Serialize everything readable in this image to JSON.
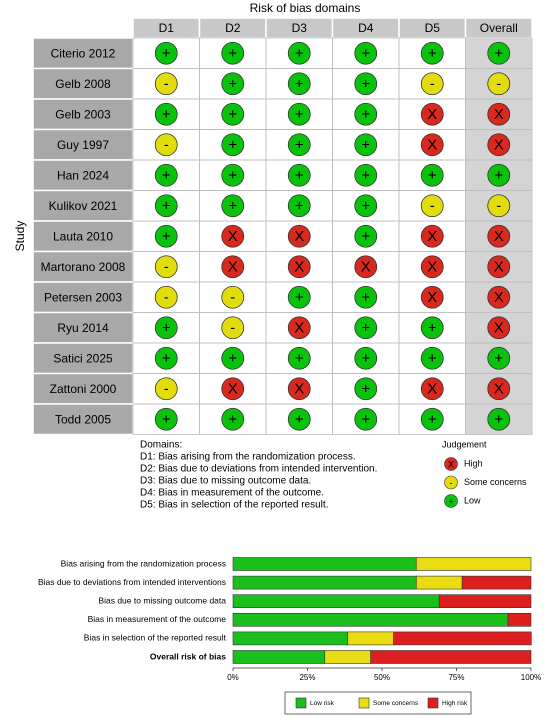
{
  "traffic_light": {
    "title": "Risk of bias domains",
    "y_label": "Study",
    "columns": [
      "D1",
      "D2",
      "D3",
      "D4",
      "D5",
      "Overall"
    ],
    "rows": [
      {
        "study": "Citerio 2012",
        "judgements": [
          "+",
          "+",
          "+",
          "+",
          "+",
          "+"
        ]
      },
      {
        "study": "Gelb 2008",
        "judgements": [
          "-",
          "+",
          "+",
          "+",
          "-",
          "-"
        ]
      },
      {
        "study": "Gelb 2003",
        "judgements": [
          "+",
          "+",
          "+",
          "+",
          "X",
          "X"
        ]
      },
      {
        "study": "Guy 1997",
        "judgements": [
          "-",
          "+",
          "+",
          "+",
          "X",
          "X"
        ]
      },
      {
        "study": "Han 2024",
        "judgements": [
          "+",
          "+",
          "+",
          "+",
          "+",
          "+"
        ]
      },
      {
        "study": "Kulikov 2021",
        "judgements": [
          "+",
          "+",
          "+",
          "+",
          "-",
          "-"
        ]
      },
      {
        "study": "Lauta 2010",
        "judgements": [
          "+",
          "X",
          "X",
          "+",
          "X",
          "X"
        ]
      },
      {
        "study": "Martorano 2008",
        "judgements": [
          "-",
          "X",
          "X",
          "X",
          "X",
          "X"
        ]
      },
      {
        "study": "Petersen 2003",
        "judgements": [
          "-",
          "-",
          "+",
          "+",
          "X",
          "X"
        ]
      },
      {
        "study": "Ryu 2014",
        "judgements": [
          "+",
          "-",
          "X",
          "+",
          "+",
          "X"
        ]
      },
      {
        "study": "Satici 2025",
        "judgements": [
          "+",
          "+",
          "+",
          "+",
          "+",
          "+"
        ]
      },
      {
        "study": "Zattoni 2000",
        "judgements": [
          "-",
          "X",
          "X",
          "+",
          "X",
          "X"
        ]
      },
      {
        "study": "Todd 2005",
        "judgements": [
          "+",
          "+",
          "+",
          "+",
          "+",
          "+"
        ]
      }
    ],
    "domains_heading": "Domains:",
    "domains": [
      "D1: Bias arising from the randomization process.",
      "D2: Bias due to deviations from intended intervention.",
      "D3: Bias due to missing outcome data.",
      "D4: Bias in measurement of the outcome.",
      "D5: Bias in selection of the reported result."
    ],
    "legend": {
      "title": "Judgement",
      "items": [
        {
          "symbol": "X",
          "label": "High",
          "color": "#d9281e"
        },
        {
          "symbol": "-",
          "label": "Some concerns",
          "color": "#e3dc0c"
        },
        {
          "symbol": "+",
          "label": "Low",
          "color": "#08c20c"
        }
      ]
    }
  },
  "chart_data": {
    "type": "bar",
    "orientation": "horizontal",
    "stacked": true,
    "categories": [
      "Bias arising from the randomization process",
      "Bias due to deviations from intended interventions",
      "Bias due to missing outcome data",
      "Bias in measurement of the outcome",
      "Bias in selection of the reported result",
      "Overall risk of bias"
    ],
    "series": [
      {
        "name": "Low risk",
        "color": "#1bbf1b",
        "values": [
          61.5,
          61.5,
          69.2,
          92.3,
          38.5,
          30.8
        ]
      },
      {
        "name": "Some concerns",
        "color": "#eadc12",
        "values": [
          38.5,
          15.4,
          0,
          0,
          15.4,
          15.4
        ]
      },
      {
        "name": "High risk",
        "color": "#dd1f1f",
        "values": [
          0,
          23.1,
          30.8,
          7.7,
          46.2,
          53.8
        ]
      }
    ],
    "xlim": [
      0,
      100
    ],
    "xticks": [
      {
        "value": 0,
        "label": "0%"
      },
      {
        "value": 25,
        "label": "25%"
      },
      {
        "value": 50,
        "label": "50%"
      },
      {
        "value": 75,
        "label": "75%"
      },
      {
        "value": 100,
        "label": "100%"
      }
    ]
  }
}
